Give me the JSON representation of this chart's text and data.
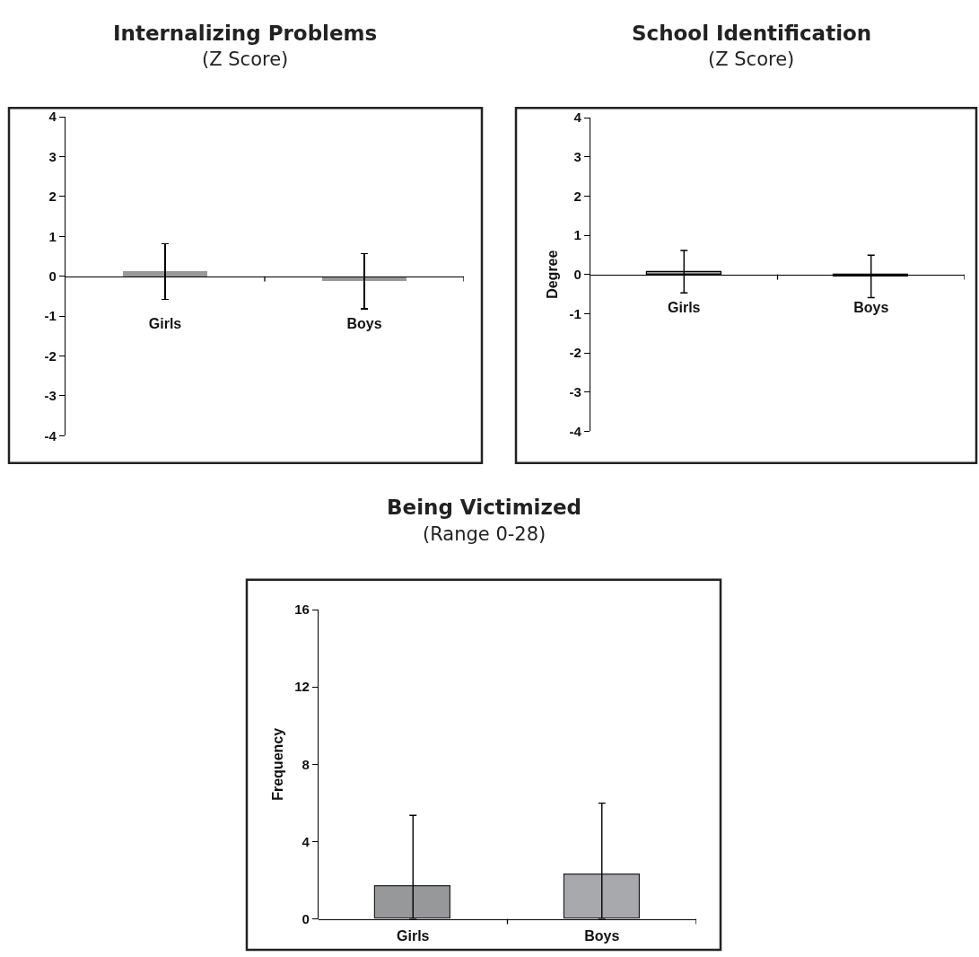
{
  "chart_data": [
    {
      "type": "bar",
      "title": "Internalizing Problems",
      "subtitle": "(Z Score)",
      "categories": [
        "Girls",
        "Boys"
      ],
      "values": [
        0.12,
        -0.13
      ],
      "errors": [
        0.7,
        0.69
      ],
      "colors": [
        "#999999",
        "#999999"
      ],
      "ylim": [
        -4,
        4
      ],
      "yticks": [
        -4,
        -3,
        -2,
        -1,
        0,
        1,
        2,
        3,
        4
      ]
    },
    {
      "type": "bar",
      "title": "School Identification",
      "subtitle": "(Z Score)",
      "ylabel": "Degree",
      "categories": [
        "Girls",
        "Boys"
      ],
      "values": [
        0.07,
        -0.05
      ],
      "errors": [
        0.54,
        0.54
      ],
      "colors": [
        "#a0a0a0",
        "#a0a0a0"
      ],
      "ylim": [
        -4,
        4
      ],
      "yticks": [
        -4,
        -3,
        -2,
        -1,
        0,
        1,
        2,
        3,
        4
      ]
    },
    {
      "type": "bar",
      "title": "Being Victimized",
      "subtitle": "(Range 0-28)",
      "ylabel": "Frequency",
      "categories": [
        "Girls",
        "Boys"
      ],
      "values": [
        1.68,
        2.29
      ],
      "errors": [
        [
          0,
          5.36
        ],
        [
          0,
          5.99
        ]
      ],
      "colors": [
        "#96989a",
        "#a7a9ac"
      ],
      "ylim": [
        0,
        16
      ],
      "yticks": [
        0,
        4,
        8,
        12,
        16
      ]
    }
  ]
}
